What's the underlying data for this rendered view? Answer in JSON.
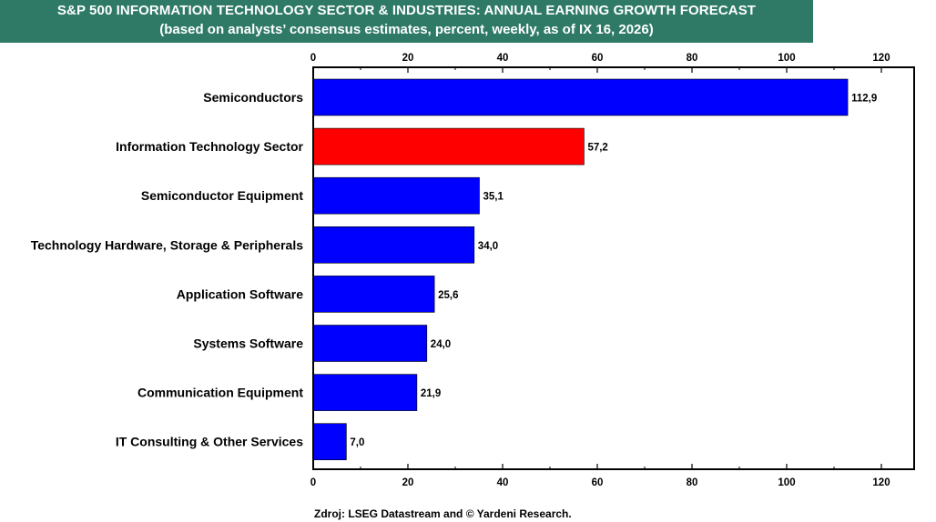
{
  "header": {
    "title": "S&P 500 INFORMATION TECHNOLOGY SECTOR & INDUSTRIES: ANNUAL EARNING GROWTH FORECAST",
    "subtitle": "(based on analysts’ consensus estimates, percent, weekly, as of IX 16, 2026)",
    "banner_color": "#2e7a66"
  },
  "footer": {
    "source": "Zdroj: LSEG Datastream and © Yardeni Research."
  },
  "chart_data": {
    "type": "bar",
    "orientation": "horizontal",
    "xlim": [
      0,
      120
    ],
    "x_ticks": [
      "0",
      "20",
      "40",
      "60",
      "80",
      "100",
      "120"
    ],
    "x_tick_values": [
      0,
      20,
      40,
      60,
      80,
      100,
      120
    ],
    "axis_tick_labels_top_and_bottom": true,
    "grid": false,
    "categories": [
      "Semiconductors",
      "Information Technology Sector",
      "Semiconductor Equipment",
      "Technology Hardware, Storage & Peripherals",
      "Application Software",
      "Systems Software",
      "Communication Equipment",
      "IT Consulting & Other Services"
    ],
    "values": [
      112.9,
      57.2,
      35.1,
      34.0,
      25.6,
      24.0,
      21.9,
      7.0
    ],
    "value_labels": [
      "112,9",
      "57,2",
      "35,1",
      "34,0",
      "25,6",
      "24,0",
      "21,9",
      "7,0"
    ],
    "colors": [
      "#0000ff",
      "#ff0000",
      "#0000ff",
      "#0000ff",
      "#0000ff",
      "#0000ff",
      "#0000ff",
      "#0000ff"
    ]
  }
}
